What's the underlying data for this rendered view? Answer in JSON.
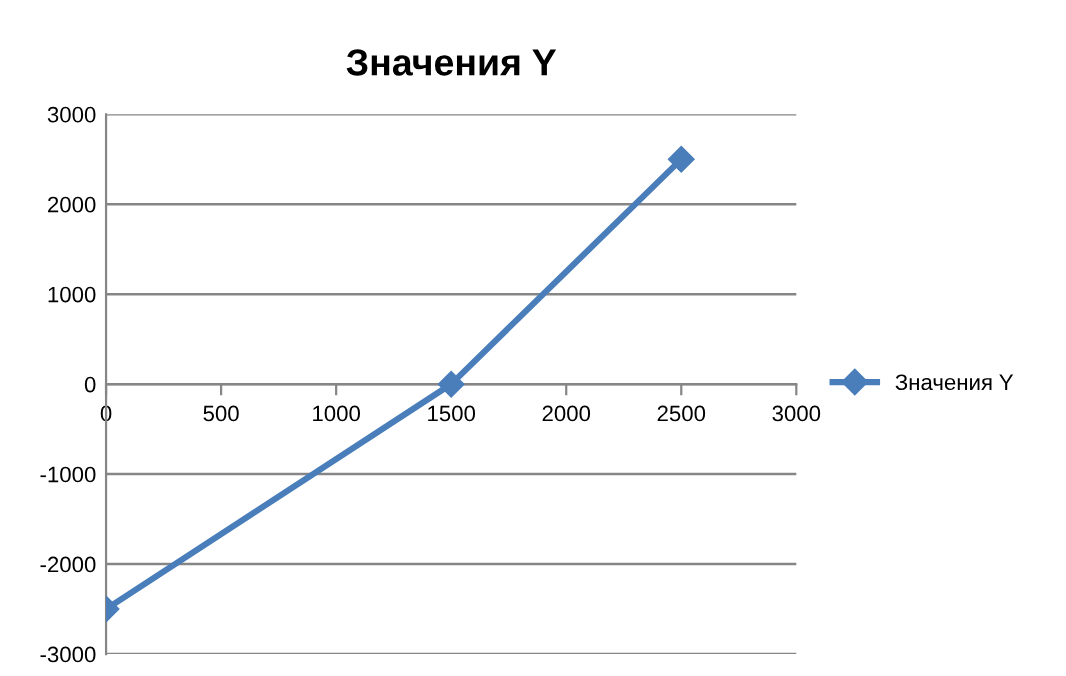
{
  "chart_data": {
    "type": "line",
    "title": "Значения Y",
    "x": [
      0,
      1500,
      2500
    ],
    "series": [
      {
        "name": "Значения Y",
        "color": "#4a7ebb",
        "values": [
          -2500,
          0,
          2500
        ]
      }
    ],
    "xlim": [
      0,
      3000
    ],
    "xticks": [
      0,
      500,
      1000,
      1500,
      2000,
      2500,
      3000
    ],
    "ylim": [
      -3000,
      3000
    ],
    "yticks": [
      -3000,
      -2000,
      -1000,
      0,
      1000,
      2000,
      3000
    ],
    "grid": "y",
    "legend": "right",
    "marker": "diamond",
    "line_style": "solid"
  }
}
